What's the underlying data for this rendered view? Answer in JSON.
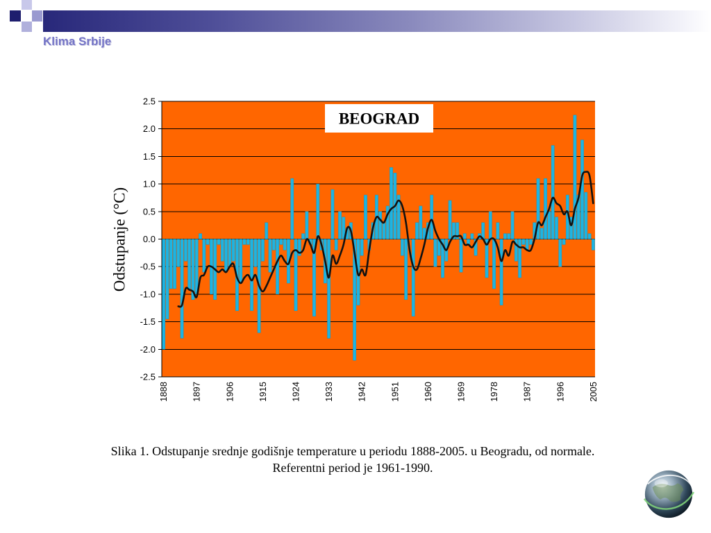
{
  "header": {
    "title": "Klima Srbije",
    "band_color": "#28287a",
    "title_color": "#7474c6"
  },
  "caption": {
    "line1": "Slika 1. Odstupanje srednje godišnje temperature u periodu 1888-2005. u Beogradu, od normale.",
    "line2": "Referentni period je 1961-1990."
  },
  "icons": {
    "globe": "globe-icon"
  },
  "chart_data": {
    "type": "bar",
    "title": "BEOGRAD",
    "xlabel": "",
    "ylabel": "Odstupanje (°C)",
    "ylim": [
      -2.5,
      2.5
    ],
    "yticks": [
      "2.5",
      "2.0",
      "1.5",
      "1.0",
      "0.5",
      "0.0",
      "-0.5",
      "-1.0",
      "-1.5",
      "-2.0",
      "-2.5"
    ],
    "xticks": [
      "1888",
      "1897",
      "1906",
      "1915",
      "1924",
      "1933",
      "1942",
      "1951",
      "1960",
      "1969",
      "1978",
      "1987",
      "1996",
      "2005"
    ],
    "grid": "horizontal",
    "legend": "none",
    "plot_background": "#ff6600",
    "categories": [
      1888,
      1889,
      1890,
      1891,
      1892,
      1893,
      1894,
      1895,
      1896,
      1897,
      1898,
      1899,
      1900,
      1901,
      1902,
      1903,
      1904,
      1905,
      1906,
      1907,
      1908,
      1909,
      1910,
      1911,
      1912,
      1913,
      1914,
      1915,
      1916,
      1917,
      1918,
      1919,
      1920,
      1921,
      1922,
      1923,
      1924,
      1925,
      1926,
      1927,
      1928,
      1929,
      1930,
      1931,
      1932,
      1933,
      1934,
      1935,
      1936,
      1937,
      1938,
      1939,
      1940,
      1941,
      1942,
      1943,
      1944,
      1945,
      1946,
      1947,
      1948,
      1949,
      1950,
      1951,
      1952,
      1953,
      1954,
      1955,
      1956,
      1957,
      1958,
      1959,
      1960,
      1961,
      1962,
      1963,
      1964,
      1965,
      1966,
      1967,
      1968,
      1969,
      1970,
      1971,
      1972,
      1973,
      1974,
      1975,
      1976,
      1977,
      1978,
      1979,
      1980,
      1981,
      1982,
      1983,
      1984,
      1985,
      1986,
      1987,
      1988,
      1989,
      1990,
      1991,
      1992,
      1993,
      1994,
      1995,
      1996,
      1997,
      1998,
      1999,
      2000,
      2001,
      2002,
      2003,
      2004,
      2005
    ],
    "series": [
      {
        "kind": "bar",
        "color": "#1eb4e2",
        "values": [
          -2.0,
          -1.45,
          -0.9,
          -0.9,
          -0.5,
          -1.8,
          -0.4,
          -0.9,
          -1.1,
          -1.0,
          0.1,
          -0.6,
          -0.1,
          -1.0,
          -1.1,
          -0.1,
          -0.4,
          -0.6,
          -0.5,
          -0.4,
          -1.3,
          -0.8,
          -0.1,
          -0.1,
          -1.3,
          -0.5,
          -1.7,
          -0.4,
          0.3,
          -0.6,
          -0.2,
          -1.0,
          -0.1,
          -0.2,
          -0.8,
          1.1,
          -1.3,
          -0.3,
          0.1,
          0.5,
          -0.1,
          -1.4,
          1.0,
          -0.2,
          -0.8,
          -1.8,
          0.9,
          -0.2,
          0.5,
          0.4,
          0.2,
          0.3,
          -2.2,
          -1.2,
          -0.3,
          0.8,
          -0.2,
          0.3,
          0.8,
          0.5,
          0.3,
          0.6,
          1.3,
          1.2,
          0.8,
          -0.3,
          -1.1,
          0.0,
          -1.4,
          0.3,
          0.6,
          0.2,
          0.3,
          0.8,
          -0.5,
          -0.3,
          -0.7,
          -0.4,
          0.7,
          0.3,
          0.3,
          -0.6,
          0.1,
          -0.1,
          0.1,
          -0.3,
          0.1,
          0.3,
          -0.7,
          0.5,
          -0.9,
          0.3,
          -1.2,
          0.1,
          0.1,
          0.5,
          -0.4,
          -0.7,
          -0.1,
          -0.2,
          -0.1,
          0.3,
          1.1,
          0.2,
          1.1,
          0.5,
          1.7,
          0.4,
          -0.5,
          -0.1,
          0.8,
          0.4,
          2.25,
          0.8,
          1.8,
          0.85,
          0.1,
          -0.2
        ]
      },
      {
        "kind": "line",
        "color": "#111111",
        "values": [
          null,
          null,
          null,
          null,
          -1.22,
          -1.2,
          -0.9,
          -0.92,
          -0.95,
          -1.05,
          -0.7,
          -0.65,
          -0.5,
          -0.5,
          -0.55,
          -0.6,
          -0.55,
          -0.6,
          -0.5,
          -0.45,
          -0.7,
          -0.8,
          -0.7,
          -0.65,
          -0.75,
          -0.65,
          -0.85,
          -0.95,
          -0.85,
          -0.7,
          -0.55,
          -0.4,
          -0.3,
          -0.4,
          -0.45,
          -0.25,
          -0.2,
          -0.25,
          -0.2,
          0.0,
          -0.1,
          -0.25,
          0.05,
          -0.1,
          -0.4,
          -0.7,
          -0.3,
          -0.45,
          -0.3,
          -0.1,
          0.2,
          0.15,
          -0.25,
          -0.65,
          -0.55,
          -0.65,
          -0.2,
          0.2,
          0.4,
          0.35,
          0.3,
          0.45,
          0.55,
          0.6,
          0.7,
          0.6,
          0.3,
          -0.2,
          -0.5,
          -0.55,
          -0.35,
          -0.1,
          0.2,
          0.35,
          0.15,
          0.0,
          -0.1,
          -0.2,
          -0.05,
          0.05,
          0.05,
          0.05,
          -0.1,
          -0.1,
          -0.15,
          -0.05,
          0.05,
          0.0,
          -0.1,
          0.0,
          0.0,
          -0.15,
          -0.4,
          -0.2,
          -0.3,
          -0.05,
          -0.1,
          -0.15,
          -0.15,
          -0.2,
          -0.2,
          0.0,
          0.3,
          0.25,
          0.4,
          0.55,
          0.75,
          0.65,
          0.6,
          0.45,
          0.5,
          0.25,
          0.55,
          0.75,
          1.15,
          1.22,
          1.15,
          0.65
        ]
      }
    ]
  }
}
